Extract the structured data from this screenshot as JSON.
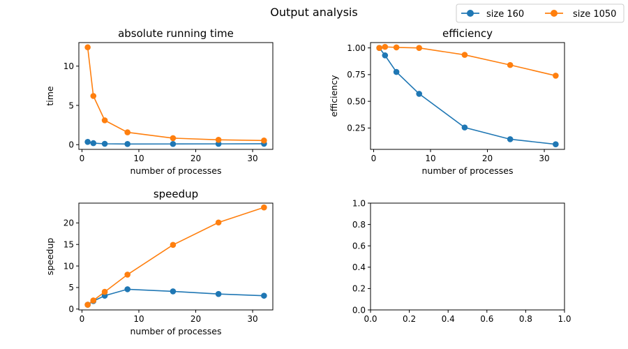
{
  "figure": {
    "title": "Output analysis",
    "legend": {
      "placement": "top-right",
      "entries": [
        {
          "name": "size 160",
          "color": "#1f77b4"
        },
        {
          "name": "size 1050",
          "color": "#ff7f0e"
        }
      ]
    }
  },
  "chart_data": [
    {
      "type": "line",
      "title": "absolute running time",
      "xlabel": "number of processes",
      "ylabel": "time",
      "xlim": [
        -0.55,
        33.55
      ],
      "ylim": [
        -0.6,
        13.0
      ],
      "xticks": [
        0,
        10,
        20,
        30
      ],
      "yticks": [
        0,
        5,
        10
      ],
      "grid": false,
      "series": [
        {
          "name": "size 160",
          "color": "#1f77b4",
          "x": [
            1,
            2,
            4,
            8,
            16,
            24,
            32
          ],
          "y": [
            0.35,
            0.19,
            0.11,
            0.08,
            0.09,
            0.1,
            0.12
          ]
        },
        {
          "name": "size 1050",
          "color": "#ff7f0e",
          "x": [
            1,
            2,
            4,
            8,
            16,
            24,
            32
          ],
          "y": [
            12.4,
            6.2,
            3.1,
            1.57,
            0.83,
            0.62,
            0.53
          ]
        }
      ]
    },
    {
      "type": "line",
      "title": "efficiency",
      "xlabel": "number of processes",
      "ylabel": "efficiency",
      "xlim": [
        -0.55,
        33.55
      ],
      "ylim": [
        0.05,
        1.05
      ],
      "xticks": [
        0,
        10,
        20,
        30
      ],
      "yticks": [
        0.25,
        0.5,
        0.75,
        1.0
      ],
      "ytick_labels": [
        "0.25",
        "0.50",
        "0.75",
        "1.00"
      ],
      "grid": false,
      "series": [
        {
          "name": "size 160",
          "color": "#1f77b4",
          "x": [
            1,
            2,
            4,
            8,
            16,
            24,
            32
          ],
          "y": [
            1.0,
            0.93,
            0.775,
            0.57,
            0.255,
            0.145,
            0.098
          ]
        },
        {
          "name": "size 1050",
          "color": "#ff7f0e",
          "x": [
            1,
            2,
            4,
            8,
            16,
            24,
            32
          ],
          "y": [
            1.0,
            1.01,
            1.005,
            1.0,
            0.935,
            0.84,
            0.74
          ]
        }
      ]
    },
    {
      "type": "line",
      "title": "speedup",
      "xlabel": "number of processes",
      "ylabel": "speedup",
      "xlim": [
        -0.55,
        33.55
      ],
      "ylim": [
        -0.2,
        24.6
      ],
      "xticks": [
        0,
        10,
        20,
        30
      ],
      "yticks": [
        0,
        5,
        10,
        15,
        20
      ],
      "grid": false,
      "series": [
        {
          "name": "size 160",
          "color": "#1f77b4",
          "x": [
            1,
            2,
            4,
            8,
            16,
            24,
            32
          ],
          "y": [
            1.0,
            1.85,
            3.1,
            4.6,
            4.1,
            3.5,
            3.1
          ]
        },
        {
          "name": "size 1050",
          "color": "#ff7f0e",
          "x": [
            1,
            2,
            4,
            8,
            16,
            24,
            32
          ],
          "y": [
            1.0,
            2.0,
            4.0,
            8.0,
            14.9,
            20.1,
            23.6
          ]
        }
      ]
    },
    {
      "type": "line",
      "title": "",
      "xlabel": "",
      "ylabel": "",
      "xlim": [
        0,
        1
      ],
      "ylim": [
        0,
        1
      ],
      "xticks": [
        0,
        0.2,
        0.4,
        0.6,
        0.8,
        1.0
      ],
      "yticks": [
        0,
        0.2,
        0.4,
        0.6,
        0.8,
        1.0
      ],
      "xtick_labels": [
        "0.0",
        "0.2",
        "0.4",
        "0.6",
        "0.8",
        "1.0"
      ],
      "ytick_labels": [
        "0.0",
        "0.2",
        "0.4",
        "0.6",
        "0.8",
        "1.0"
      ],
      "grid": false,
      "series": []
    }
  ]
}
